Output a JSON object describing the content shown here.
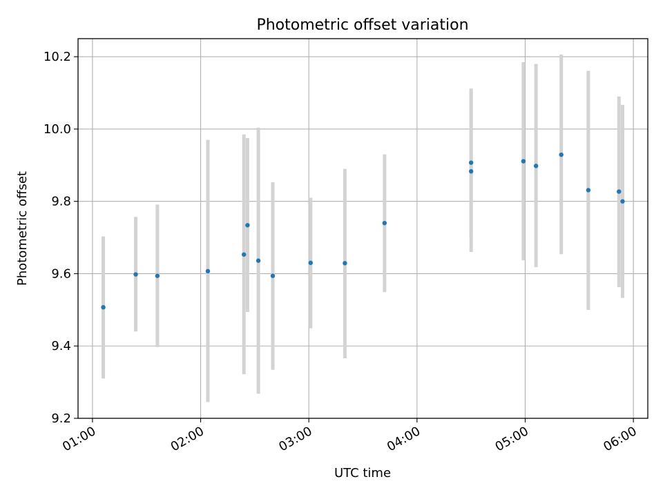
{
  "chart_data": {
    "type": "scatter",
    "title": "Photometric offset variation",
    "xlabel": "UTC time",
    "ylabel": "Photometric offset",
    "xlim": [
      "00:52",
      "06:08"
    ],
    "ylim": [
      9.2,
      10.25
    ],
    "x_ticks": [
      "01:00",
      "02:00",
      "03:00",
      "04:00",
      "05:00",
      "06:00"
    ],
    "y_ticks": [
      "9.2",
      "9.4",
      "9.6",
      "9.8",
      "10.0",
      "10.2"
    ],
    "grid": true,
    "series": [
      {
        "marker_color": "#1f77b4",
        "errorbar_color": "#d3d3d3",
        "points": [
          {
            "x": "01:06",
            "y": 9.507,
            "yerr_low": 9.31,
            "yerr_high": 9.703
          },
          {
            "x": "01:24",
            "y": 9.598,
            "yerr_low": 9.44,
            "yerr_high": 9.757
          },
          {
            "x": "01:36",
            "y": 9.594,
            "yerr_low": 9.397,
            "yerr_high": 9.791
          },
          {
            "x": "02:04",
            "y": 9.607,
            "yerr_low": 9.245,
            "yerr_high": 9.97
          },
          {
            "x": "02:24",
            "y": 9.653,
            "yerr_low": 9.322,
            "yerr_high": 9.985
          },
          {
            "x": "02:26",
            "y": 9.734,
            "yerr_low": 9.494,
            "yerr_high": 9.975
          },
          {
            "x": "02:32",
            "y": 9.636,
            "yerr_low": 9.268,
            "yerr_high": 10.004
          },
          {
            "x": "02:40",
            "y": 9.594,
            "yerr_low": 9.334,
            "yerr_high": 9.853
          },
          {
            "x": "03:01",
            "y": 9.63,
            "yerr_low": 9.449,
            "yerr_high": 9.81
          },
          {
            "x": "03:20",
            "y": 9.629,
            "yerr_low": 9.366,
            "yerr_high": 9.89
          },
          {
            "x": "03:42",
            "y": 9.74,
            "yerr_low": 9.549,
            "yerr_high": 9.93
          },
          {
            "x": "04:30",
            "y": 9.907,
            "yerr_low": 9.702,
            "yerr_high": 10.112
          },
          {
            "x": "04:30",
            "y": 9.883,
            "yerr_low": 9.66,
            "yerr_high": 10.106
          },
          {
            "x": "04:59",
            "y": 9.911,
            "yerr_low": 9.637,
            "yerr_high": 10.185
          },
          {
            "x": "05:06",
            "y": 9.898,
            "yerr_low": 9.618,
            "yerr_high": 10.18
          },
          {
            "x": "05:20",
            "y": 9.929,
            "yerr_low": 9.654,
            "yerr_high": 10.206
          },
          {
            "x": "05:35",
            "y": 9.831,
            "yerr_low": 9.5,
            "yerr_high": 10.161
          },
          {
            "x": "05:52",
            "y": 9.827,
            "yerr_low": 9.563,
            "yerr_high": 10.09
          },
          {
            "x": "05:54",
            "y": 9.8,
            "yerr_low": 9.533,
            "yerr_high": 10.067
          }
        ]
      }
    ]
  }
}
